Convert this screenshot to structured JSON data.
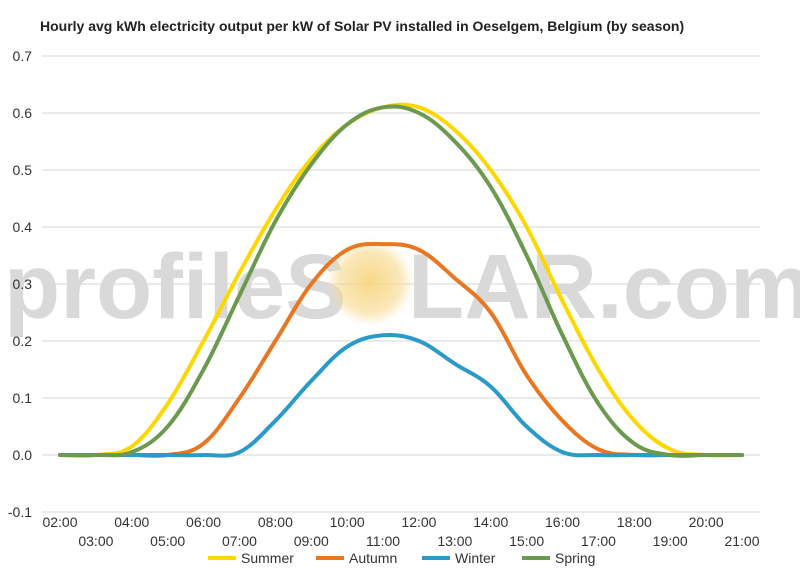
{
  "chart_data": {
    "type": "line",
    "title": "Hourly avg kWh electricity output per kW of Solar PV installed in Oeselgem, Belgium (by season)",
    "xlabel": "",
    "ylabel": "",
    "ylim": [
      -0.1,
      0.7
    ],
    "yticks": [
      "-0.1",
      "0.0",
      "0.1",
      "0.2",
      "0.3",
      "0.4",
      "0.5",
      "0.6",
      "0.7"
    ],
    "xlim": [
      2,
      21
    ],
    "xticks": [
      "02:00",
      "03:00",
      "04:00",
      "05:00",
      "06:00",
      "07:00",
      "08:00",
      "09:00",
      "10:00",
      "11:00",
      "12:00",
      "13:00",
      "14:00",
      "15:00",
      "16:00",
      "17:00",
      "18:00",
      "19:00",
      "20:00",
      "21:00"
    ],
    "x": [
      2,
      3,
      4,
      5,
      6,
      7,
      8,
      9,
      10,
      11,
      12,
      13,
      14,
      15,
      16,
      17,
      18,
      19,
      20,
      21
    ],
    "grid": true,
    "legend_position": "bottom",
    "series": [
      {
        "name": "Summer",
        "color": "#FFD700",
        "values": [
          0,
          0,
          0.015,
          0.09,
          0.2,
          0.32,
          0.43,
          0.52,
          0.58,
          0.61,
          0.61,
          0.57,
          0.5,
          0.4,
          0.27,
          0.15,
          0.06,
          0.01,
          0,
          0
        ]
      },
      {
        "name": "Autumn",
        "color": "#E87722",
        "values": [
          0,
          0,
          0,
          0,
          0.02,
          0.1,
          0.2,
          0.3,
          0.36,
          0.37,
          0.36,
          0.31,
          0.25,
          0.14,
          0.06,
          0.01,
          0,
          0,
          0,
          0
        ]
      },
      {
        "name": "Winter",
        "color": "#2B9AC8",
        "values": [
          0,
          0,
          0,
          0,
          0,
          0.005,
          0.06,
          0.13,
          0.19,
          0.21,
          0.2,
          0.16,
          0.12,
          0.05,
          0.005,
          0,
          0,
          0,
          0,
          0
        ]
      },
      {
        "name": "Spring",
        "color": "#6B9A4E",
        "values": [
          0,
          0,
          0.005,
          0.05,
          0.15,
          0.28,
          0.41,
          0.51,
          0.58,
          0.61,
          0.6,
          0.55,
          0.47,
          0.35,
          0.21,
          0.09,
          0.02,
          0,
          0,
          0
        ]
      }
    ]
  },
  "watermark": {
    "left": "profileS",
    "right": "LAR.com",
    "sun_color": "#f5cf78"
  }
}
